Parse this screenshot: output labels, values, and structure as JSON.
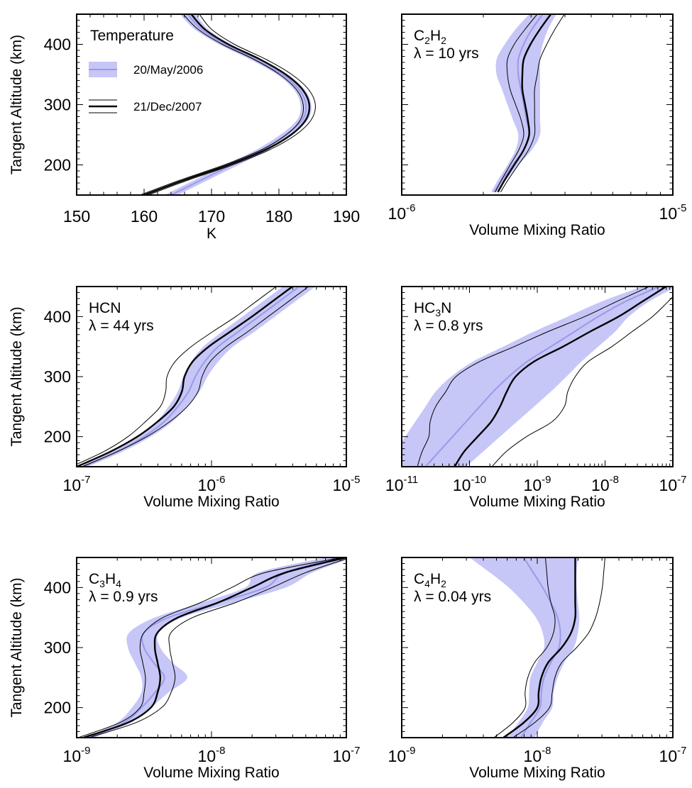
{
  "legend": {
    "title": "Temperature",
    "band_label": "20/May/2006",
    "line_label": "21/Dec/2007"
  },
  "colors": {
    "band_fill": "#c6c6f7",
    "band_center": "#9a9ae8",
    "line": "#000000",
    "frame": "#000000"
  },
  "chart_data": [
    {
      "id": "temperature",
      "type": "line",
      "x_scale": "linear",
      "xlim": [
        150,
        190
      ],
      "ylim": [
        150,
        450
      ],
      "xticks": [
        "150",
        "160",
        "170",
        "180",
        "190"
      ],
      "yticks": [
        "200",
        "300",
        "400"
      ],
      "xlabel": "K",
      "ylabel": "Tangent Altitude (km)",
      "label_parts": [
        "Temperature"
      ],
      "lambda": "",
      "y": [
        150,
        175,
        200,
        225,
        250,
        275,
        300,
        325,
        350,
        375,
        400,
        425,
        450
      ],
      "band_2006": {
        "center": [
          164.0,
          168.5,
          173.0,
          177.5,
          181.0,
          183.5,
          184.0,
          183.0,
          180.5,
          176.5,
          172.0,
          168.5,
          166.5
        ],
        "halfwidth": [
          1.0,
          1.0,
          1.0,
          0.9,
          0.8,
          0.8,
          0.8,
          0.8,
          0.8,
          0.8,
          0.9,
          1.0,
          1.2
        ]
      },
      "line_2007": {
        "center": [
          160.0,
          166.0,
          172.5,
          178.0,
          181.8,
          184.0,
          184.5,
          183.5,
          181.0,
          177.2,
          172.5,
          169.0,
          167.0
        ],
        "halfwidth": [
          0.6,
          0.6,
          0.6,
          0.6,
          0.7,
          0.8,
          0.9,
          0.9,
          0.9,
          0.9,
          0.9,
          1.0,
          1.2
        ]
      }
    },
    {
      "id": "c2h2",
      "type": "line",
      "x_scale": "log",
      "xlim": [
        -6,
        -5
      ],
      "ylim": [
        150,
        450
      ],
      "xticks": [
        "-6",
        "-5"
      ],
      "yticks": [
        "200",
        "300",
        "400"
      ],
      "xlabel": "Volume Mixing Ratio",
      "ylabel": "",
      "label_parts": [
        "C",
        "2",
        "H",
        "2"
      ],
      "lambda": "λ = 10 yrs",
      "y": [
        155,
        175,
        200,
        225,
        250,
        275,
        300,
        325,
        350,
        375,
        400,
        425,
        450
      ],
      "band_2006": {
        "center": [
          -5.66,
          -5.63,
          -5.59,
          -5.55,
          -5.53,
          -5.54,
          -5.55,
          -5.56,
          -5.57,
          -5.57,
          -5.55,
          -5.52,
          -5.48
        ],
        "halfwidth": [
          0.01,
          0.015,
          0.02,
          0.03,
          0.04,
          0.05,
          0.06,
          0.07,
          0.08,
          0.08,
          0.07,
          0.06,
          0.05
        ]
      },
      "line_2007": {
        "center": [
          -5.645,
          -5.62,
          -5.585,
          -5.55,
          -5.53,
          -5.535,
          -5.545,
          -5.555,
          -5.555,
          -5.55,
          -5.525,
          -5.49,
          -5.45
        ],
        "halfwidth": [
          0.01,
          0.012,
          0.015,
          0.018,
          0.02,
          0.025,
          0.035,
          0.045,
          0.055,
          0.06,
          0.06,
          0.055,
          0.05
        ]
      }
    },
    {
      "id": "hcn",
      "type": "line",
      "x_scale": "log",
      "xlim": [
        -7,
        -5
      ],
      "ylim": [
        150,
        450
      ],
      "xticks": [
        "-7",
        "-6",
        "-5"
      ],
      "yticks": [
        "200",
        "300",
        "400"
      ],
      "xlabel": "Volume Mixing Ratio",
      "ylabel": "Tangent Altitude (km)",
      "label_parts": [
        "HCN"
      ],
      "lambda": "λ = 44 yrs",
      "y": [
        150,
        175,
        200,
        225,
        250,
        275,
        300,
        325,
        350,
        375,
        400,
        425,
        450
      ],
      "band_2006": {
        "center": [
          -6.95,
          -6.7,
          -6.5,
          -6.35,
          -6.25,
          -6.17,
          -6.12,
          -6.05,
          -5.95,
          -5.8,
          -5.65,
          -5.5,
          -5.35
        ],
        "halfwidth": [
          0.03,
          0.04,
          0.05,
          0.06,
          0.07,
          0.08,
          0.09,
          0.1,
          0.11,
          0.12,
          0.12,
          0.12,
          0.12
        ]
      },
      "line_2007": {
        "center": [
          -7.0,
          -6.75,
          -6.55,
          -6.4,
          -6.28,
          -6.22,
          -6.2,
          -6.14,
          -6.02,
          -5.86,
          -5.7,
          -5.55,
          -5.4
        ],
        "halfwidth": [
          0.04,
          0.05,
          0.07,
          0.09,
          0.1,
          0.12,
          0.13,
          0.13,
          0.13,
          0.13,
          0.12,
          0.12,
          0.12
        ]
      }
    },
    {
      "id": "hc3n",
      "type": "line",
      "x_scale": "log",
      "xlim": [
        -11,
        -7
      ],
      "ylim": [
        150,
        450
      ],
      "xticks": [
        "-11",
        "-10",
        "-9",
        "-8",
        "-7"
      ],
      "yticks": [
        "200",
        "300",
        "400"
      ],
      "xlabel": "Volume Mixing Ratio",
      "ylabel": "",
      "label_parts": [
        "HC",
        "3",
        "N"
      ],
      "lambda": "λ = 0.8 yrs",
      "y": [
        150,
        175,
        200,
        225,
        250,
        275,
        300,
        325,
        350,
        375,
        400,
        425,
        450
      ],
      "band_2006": {
        "center": [
          -10.65,
          -10.45,
          -10.25,
          -10.05,
          -9.85,
          -9.65,
          -9.42,
          -9.15,
          -8.8,
          -8.45,
          -8.1,
          -7.7,
          -7.2
        ],
        "halfwidth": [
          0.6,
          0.65,
          0.7,
          0.75,
          0.8,
          0.85,
          0.85,
          0.8,
          0.7,
          0.6,
          0.45,
          0.35,
          0.25
        ]
      },
      "line_2007": {
        "center": [
          -10.22,
          -10.08,
          -9.88,
          -9.68,
          -9.55,
          -9.45,
          -9.32,
          -9.05,
          -8.62,
          -8.22,
          -7.8,
          -7.45,
          -7.1
        ],
        "halfwidth": [
          0.55,
          0.62,
          0.72,
          0.9,
          0.95,
          0.9,
          0.88,
          0.8,
          0.72,
          0.62,
          0.5,
          0.38,
          0.25
        ]
      }
    },
    {
      "id": "c3h4",
      "type": "line",
      "x_scale": "log",
      "xlim": [
        -9,
        -7
      ],
      "ylim": [
        150,
        450
      ],
      "xticks": [
        "-9",
        "-8",
        "-7"
      ],
      "yticks": [
        "200",
        "300",
        "400"
      ],
      "xlabel": "Volume Mixing Ratio",
      "ylabel": "Tangent Altitude (km)",
      "label_parts": [
        "C",
        "3",
        "H",
        "4"
      ],
      "lambda": "λ = 0.9 yrs",
      "y": [
        150,
        175,
        200,
        225,
        250,
        275,
        300,
        325,
        350,
        375,
        400,
        425,
        450
      ],
      "band_2006": {
        "center": [
          -8.9,
          -8.65,
          -8.52,
          -8.42,
          -8.35,
          -8.43,
          -8.5,
          -8.5,
          -8.32,
          -7.95,
          -7.6,
          -7.45,
          -7.05
        ],
        "halfwidth": [
          0.03,
          0.05,
          0.07,
          0.1,
          0.17,
          0.14,
          0.12,
          0.11,
          0.1,
          0.12,
          0.15,
          0.2,
          0.1
        ]
      },
      "line_2007": {
        "center": [
          -8.95,
          -8.62,
          -8.45,
          -8.4,
          -8.38,
          -8.4,
          -8.42,
          -8.4,
          -8.25,
          -7.95,
          -7.7,
          -7.45,
          -7.0
        ],
        "halfwidth": [
          0.04,
          0.06,
          0.08,
          0.1,
          0.11,
          0.11,
          0.11,
          0.1,
          0.11,
          0.13,
          0.15,
          0.15,
          0.03
        ]
      }
    },
    {
      "id": "c4h2",
      "type": "line",
      "x_scale": "log",
      "xlim": [
        -9,
        -7
      ],
      "ylim": [
        150,
        450
      ],
      "xticks": [
        "-9",
        "-8",
        "-7"
      ],
      "yticks": [
        "200",
        "300",
        "400"
      ],
      "xlabel": "Volume Mixing Ratio",
      "ylabel": "",
      "label_parts": [
        "C",
        "4",
        "H",
        "2"
      ],
      "lambda": "λ = 0.04 yrs",
      "y": [
        150,
        175,
        200,
        225,
        250,
        275,
        300,
        325,
        350,
        375,
        400,
        425,
        450
      ],
      "band_2006": {
        "center": [
          -8.12,
          -8.05,
          -7.98,
          -7.97,
          -7.95,
          -7.9,
          -7.84,
          -7.83,
          -7.85,
          -7.9,
          -7.96,
          -8.03,
          -8.1
        ],
        "halfwidth": [
          0.1,
          0.09,
          0.09,
          0.09,
          0.1,
          0.1,
          0.11,
          0.13,
          0.16,
          0.2,
          0.25,
          0.32,
          0.4
        ]
      },
      "line_2007": {
        "center": [
          -8.25,
          -8.1,
          -8.0,
          -7.99,
          -7.97,
          -7.92,
          -7.82,
          -7.75,
          -7.72,
          -7.72,
          -7.72,
          -7.72,
          -7.72
        ],
        "halfwidth": [
          0.07,
          0.08,
          0.09,
          0.1,
          0.1,
          0.1,
          0.11,
          0.13,
          0.15,
          0.18,
          0.2,
          0.21,
          0.22
        ]
      }
    }
  ]
}
